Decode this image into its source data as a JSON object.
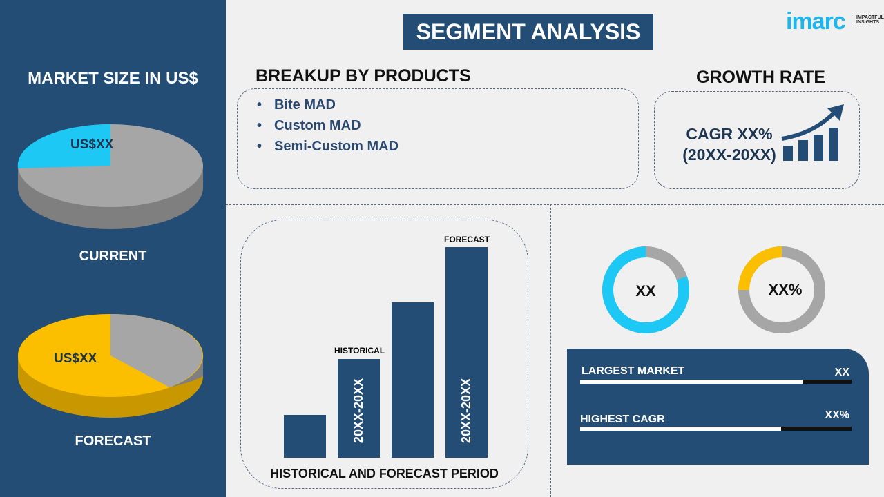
{
  "colors": {
    "navy": "#234d74",
    "cyan": "#1ec8f5",
    "yellow": "#fbbf00",
    "gray": "#a6a6a6"
  },
  "left": {
    "title": "MARKET SIZE IN US$",
    "current": {
      "value": "US$XX",
      "label": "CURRENT"
    },
    "forecast": {
      "value": "US$XX",
      "label": "FORECAST"
    }
  },
  "header": {
    "title": "SEGMENT ANALYSIS",
    "logo": "imarc",
    "logo_tag": "IMPACTFUL INSIGHTS"
  },
  "breakup": {
    "title": "BREAKUP BY PRODUCTS",
    "items": [
      "Bite MAD",
      "Custom MAD",
      "Semi-Custom MAD"
    ]
  },
  "growth": {
    "title": "GROWTH RATE",
    "cagr": "CAGR XX%",
    "period": "(20XX-20XX)",
    "icon": "growth-chart-icon"
  },
  "period_chart": {
    "historical_label": "HISTORICAL",
    "forecast_label": "FORECAST",
    "historical_range": "20XX-20XX",
    "forecast_range": "20XX-20XX",
    "caption": "HISTORICAL AND FORECAST PERIOD"
  },
  "donuts": [
    {
      "value": "XX",
      "fill_percent": 80,
      "color": "#1ec8f5"
    },
    {
      "value": "XX%",
      "fill_percent": 25,
      "color": "#fbbf00"
    }
  ],
  "stats": [
    {
      "label": "LARGEST MARKET",
      "value": "XX",
      "fill_percent": 82
    },
    {
      "label": "HIGHEST CAGR",
      "value": "XX%",
      "fill_percent": 74
    }
  ]
}
